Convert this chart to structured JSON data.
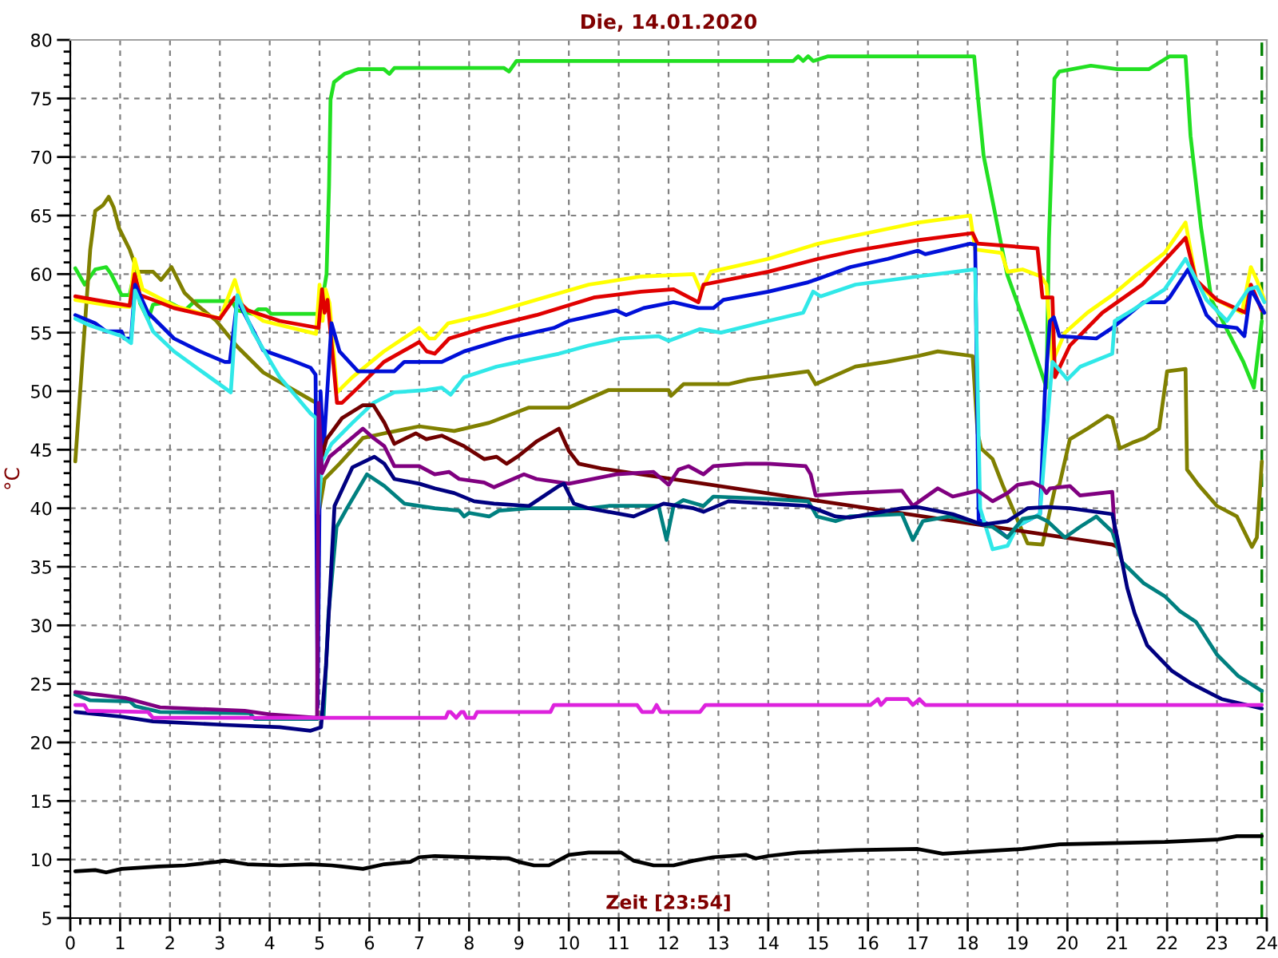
{
  "chart_data": {
    "type": "line",
    "title": "Die, 14.01.2020",
    "xlabel": "Zeit [23:54]",
    "ylabel": "°C",
    "xlim": [
      0,
      24
    ],
    "ylim": [
      5,
      80
    ],
    "xticks": [
      0,
      {
        "value": 0.2,
        "label": null
      },
      {
        "value": 0.4,
        "label": null
      },
      {
        "value": 0.6,
        "label": null
      },
      {
        "value": 0.8,
        "label": null
      },
      1,
      {
        "value": 1.2,
        "label": null
      },
      {
        "value": 1.4,
        "label": null
      },
      {
        "value": 1.6,
        "label": null
      },
      {
        "value": 1.8,
        "label": null
      },
      2,
      {
        "value": 2.2,
        "label": null
      },
      {
        "value": 2.4,
        "label": null
      },
      {
        "value": 2.6,
        "label": null
      },
      {
        "value": 2.8,
        "label": null
      },
      3,
      {
        "value": 3.2,
        "label": null
      },
      {
        "value": 3.4,
        "label": null
      },
      {
        "value": 3.6,
        "label": null
      },
      {
        "value": 3.8,
        "label": null
      },
      4,
      {
        "value": 4.2,
        "label": null
      },
      {
        "value": 4.4,
        "label": null
      },
      {
        "value": 4.6,
        "label": null
      },
      {
        "value": 4.8,
        "label": null
      },
      5,
      {
        "value": 5.2,
        "label": null
      },
      {
        "value": 5.4,
        "label": null
      },
      {
        "value": 5.6,
        "label": null
      },
      {
        "value": 5.8,
        "label": null
      },
      6,
      {
        "value": 6.2,
        "label": null
      },
      {
        "value": 6.4,
        "label": null
      },
      {
        "value": 6.6,
        "label": null
      },
      {
        "value": 6.8,
        "label": null
      },
      7,
      {
        "value": 7.2,
        "label": null
      },
      {
        "value": 7.4,
        "label": null
      },
      {
        "value": 7.6,
        "label": null
      },
      {
        "value": 7.8,
        "label": null
      },
      8,
      {
        "value": 8.2,
        "label": null
      },
      {
        "value": 8.4,
        "label": null
      },
      {
        "value": 8.6,
        "label": null
      },
      {
        "value": 8.8,
        "label": null
      },
      9,
      {
        "value": 9.2,
        "label": null
      },
      {
        "value": 9.4,
        "label": null
      },
      {
        "value": 9.6,
        "label": null
      },
      {
        "value": 9.8,
        "label": null
      },
      10,
      {
        "value": 10.2,
        "label": null
      },
      {
        "value": 10.4,
        "label": null
      },
      {
        "value": 10.6,
        "label": null
      },
      {
        "value": 10.8,
        "label": null
      },
      11,
      {
        "value": 11.2,
        "label": null
      },
      {
        "value": 11.4,
        "label": null
      },
      {
        "value": 11.6,
        "label": null
      },
      {
        "value": 11.8,
        "label": null
      },
      12,
      {
        "value": 12.2,
        "label": null
      },
      {
        "value": 12.4,
        "label": null
      },
      {
        "value": 12.6,
        "label": null
      },
      {
        "value": 12.8,
        "label": null
      },
      13,
      {
        "value": 13.2,
        "label": null
      },
      {
        "value": 13.4,
        "label": null
      },
      {
        "value": 13.6,
        "label": null
      },
      {
        "value": 13.8,
        "label": null
      },
      14,
      {
        "value": 14.2,
        "label": null
      },
      {
        "value": 14.4,
        "label": null
      },
      {
        "value": 14.6,
        "label": null
      },
      {
        "value": 14.8,
        "label": null
      },
      15,
      {
        "value": 15.2,
        "label": null
      },
      {
        "value": 15.4,
        "label": null
      },
      {
        "value": 15.6,
        "label": null
      },
      {
        "value": 15.8,
        "label": null
      },
      16,
      {
        "value": 16.2,
        "label": null
      },
      {
        "value": 16.4,
        "label": null
      },
      {
        "value": 16.6,
        "label": null
      },
      {
        "value": 16.8,
        "label": null
      },
      17,
      {
        "value": 17.2,
        "label": null
      },
      {
        "value": 17.4,
        "label": null
      },
      {
        "value": 17.6,
        "label": null
      },
      {
        "value": 17.8,
        "label": null
      },
      18,
      {
        "value": 18.2,
        "label": null
      },
      {
        "value": 18.4,
        "label": null
      },
      {
        "value": 18.6,
        "label": null
      },
      {
        "value": 18.8,
        "label": null
      },
      19,
      {
        "value": 19.2,
        "label": null
      },
      {
        "value": 19.4,
        "label": null
      },
      {
        "value": 19.6,
        "label": null
      },
      {
        "value": 19.8,
        "label": null
      },
      20,
      {
        "value": 20.2,
        "label": null
      },
      {
        "value": 20.4,
        "label": null
      },
      {
        "value": 20.6,
        "label": null
      },
      {
        "value": 20.8,
        "label": null
      },
      21,
      {
        "value": 21.2,
        "label": null
      },
      {
        "value": 21.4,
        "label": null
      },
      {
        "value": 21.6,
        "label": null
      },
      {
        "value": 21.8,
        "label": null
      },
      22,
      {
        "value": 22.2,
        "label": null
      },
      {
        "value": 22.4,
        "label": null
      },
      {
        "value": 22.6,
        "label": null
      },
      {
        "value": 22.8,
        "label": null
      },
      23,
      {
        "value": 23.2,
        "label": null
      },
      {
        "value": 23.4,
        "label": null
      },
      {
        "value": 23.6,
        "label": null
      },
      {
        "value": 23.8,
        "label": null
      },
      24
    ],
    "yticks": [
      5,
      {
        "value": 6,
        "label": null
      },
      {
        "value": 7,
        "label": null
      },
      {
        "value": 8,
        "label": null
      },
      {
        "value": 9,
        "label": null
      },
      10,
      {
        "value": 11,
        "label": null
      },
      {
        "value": 12,
        "label": null
      },
      {
        "value": 13,
        "label": null
      },
      {
        "value": 14,
        "label": null
      },
      15,
      {
        "value": 16,
        "label": null
      },
      {
        "value": 17,
        "label": null
      },
      {
        "value": 18,
        "label": null
      },
      {
        "value": 19,
        "label": null
      },
      20,
      {
        "value": 21,
        "label": null
      },
      {
        "value": 22,
        "label": null
      },
      {
        "value": 23,
        "label": null
      },
      {
        "value": 24,
        "label": null
      },
      25,
      {
        "value": 26,
        "label": null
      },
      {
        "value": 27,
        "label": null
      },
      {
        "value": 28,
        "label": null
      },
      {
        "value": 29,
        "label": null
      },
      30,
      {
        "value": 31,
        "label": null
      },
      {
        "value": 32,
        "label": null
      },
      {
        "value": 33,
        "label": null
      },
      {
        "value": 34,
        "label": null
      },
      35,
      {
        "value": 36,
        "label": null
      },
      {
        "value": 37,
        "label": null
      },
      {
        "value": 38,
        "label": null
      },
      {
        "value": 39,
        "label": null
      },
      40,
      {
        "value": 41,
        "label": null
      },
      {
        "value": 42,
        "label": null
      },
      {
        "value": 43,
        "label": null
      },
      {
        "value": 44,
        "label": null
      },
      45,
      {
        "value": 46,
        "label": null
      },
      {
        "value": 47,
        "label": null
      },
      {
        "value": 48,
        "label": null
      },
      {
        "value": 49,
        "label": null
      },
      50,
      {
        "value": 51,
        "label": null
      },
      {
        "value": 52,
        "label": null
      },
      {
        "value": 53,
        "label": null
      },
      {
        "value": 54,
        "label": null
      },
      55,
      {
        "value": 56,
        "label": null
      },
      {
        "value": 57,
        "label": null
      },
      {
        "value": 58,
        "label": null
      },
      {
        "value": 59,
        "label": null
      },
      60,
      {
        "value": 61,
        "label": null
      },
      {
        "value": 62,
        "label": null
      },
      {
        "value": 63,
        "label": null
      },
      {
        "value": 64,
        "label": null
      },
      65,
      {
        "value": 66,
        "label": null
      },
      {
        "value": 67,
        "label": null
      },
      {
        "value": 68,
        "label": null
      },
      {
        "value": 69,
        "label": null
      },
      70,
      {
        "value": 71,
        "label": null
      },
      {
        "value": 72,
        "label": null
      },
      {
        "value": 73,
        "label": null
      },
      {
        "value": 74,
        "label": null
      },
      75,
      {
        "value": 76,
        "label": null
      },
      {
        "value": 77,
        "label": null
      },
      {
        "value": 78,
        "label": null
      },
      {
        "value": 79,
        "label": null
      },
      80
    ],
    "grid": true,
    "ref_lines": [
      {
        "axis": "x",
        "value": 23.9,
        "color": "#008000",
        "line_style": "dashed"
      }
    ],
    "series": [
      {
        "color": "#22e022",
        "x": [
          0.1,
          0.29,
          0.5,
          0.72,
          0.82,
          1.03,
          1.19,
          1.29,
          1.4,
          1.56,
          1.66,
          1.98,
          2.3,
          2.5,
          3.24,
          3.35,
          3.66,
          3.77,
          3.93,
          4.03,
          5.01,
          5.14,
          5.19,
          5.22,
          5.29,
          5.5,
          5.77,
          6.29,
          6.4,
          6.5,
          8.7,
          8.8,
          8.95,
          14.5,
          14.6,
          14.7,
          14.8,
          14.9,
          15.2,
          18.13,
          18.21,
          18.32,
          18.79,
          19.21,
          19.58,
          19.63,
          19.74,
          19.84,
          20.47,
          21.0,
          21.63,
          22.05,
          22.37,
          22.47,
          22.68,
          22.89,
          23.1,
          23.53,
          23.74,
          23.9
        ],
        "values": [
          60.5,
          59.1,
          60.4,
          60.6,
          60,
          58.2,
          58.2,
          60.2,
          57.5,
          56.1,
          57.4,
          57.6,
          56.9,
          57.7,
          57.7,
          56.9,
          56.6,
          57,
          57,
          56.6,
          56.6,
          60,
          67.5,
          74.9,
          76.4,
          77.1,
          77.5,
          77.5,
          77.1,
          77.6,
          77.6,
          77.3,
          78.2,
          78.2,
          78.6,
          78.2,
          78.6,
          78.2,
          78.6,
          78.6,
          74.9,
          70.1,
          60,
          55,
          50.3,
          63,
          76.7,
          77.3,
          77.8,
          77.5,
          77.5,
          78.6,
          78.6,
          71.8,
          64,
          57.8,
          56.1,
          52.5,
          50.3,
          56
        ]
      },
      {
        "color": "#808000",
        "x": [
          0.1,
          0.24,
          0.4,
          0.5,
          0.66,
          0.77,
          0.87,
          0.98,
          1.19,
          1.35,
          1.66,
          1.82,
          2.03,
          2.29,
          2.56,
          2.93,
          3.35,
          3.87,
          4.4,
          4.93,
          5.0,
          5.1,
          5.4,
          5.87,
          6.3,
          7.0,
          7.7,
          8.4,
          9.2,
          10.0,
          10.8,
          12.0,
          12.05,
          12.3,
          13.2,
          13.6,
          14.8,
          14.95,
          15.75,
          16.37,
          17.0,
          17.4,
          18.1,
          18.2,
          18.27,
          18.5,
          18.7,
          18.9,
          19.2,
          19.5,
          19.75,
          19.84,
          20.05,
          20.4,
          20.8,
          20.9,
          21.05,
          21.3,
          21.55,
          21.84,
          22.0,
          22.37,
          22.4,
          22.63,
          23.0,
          23.4,
          23.7,
          23.8,
          23.9
        ],
        "values": [
          44,
          52.5,
          62.1,
          65.4,
          65.9,
          66.6,
          65.7,
          63.9,
          62.1,
          60.2,
          60.2,
          59.5,
          60.6,
          58.4,
          57.3,
          56,
          53.8,
          51.6,
          50.3,
          49,
          40,
          42.5,
          43.8,
          46,
          46.4,
          47,
          46.6,
          47.3,
          48.6,
          48.6,
          50.1,
          50.1,
          49.6,
          50.6,
          50.6,
          51,
          51.7,
          50.6,
          52.1,
          52.5,
          53,
          53.4,
          53,
          46.4,
          45.1,
          44.2,
          42,
          40,
          37,
          36.9,
          41.7,
          42,
          45.9,
          46.8,
          47.9,
          47.7,
          45.1,
          45.6,
          46,
          46.8,
          51.7,
          51.9,
          43.3,
          42,
          40.2,
          39.3,
          36.7,
          37.5,
          44
        ]
      },
      {
        "color": "#ffff00",
        "x": [
          0.1,
          0.82,
          1.19,
          1.29,
          1.45,
          2.08,
          3.0,
          3.3,
          3.45,
          3.87,
          4.93,
          5.0,
          5.06,
          5.12,
          5.2,
          5.35,
          5.66,
          6.29,
          7.0,
          7.2,
          7.31,
          7.58,
          8.3,
          9.35,
          10.4,
          11.45,
          12.5,
          12.65,
          12.85,
          14.0,
          15.0,
          15.75,
          17.0,
          18.05,
          18.15,
          18.68,
          18.8,
          19.1,
          19.47,
          19.58,
          19.7,
          19.95,
          20.4,
          20.9,
          21.4,
          21.95,
          22.37,
          22.58,
          22.9,
          23.5,
          23.68,
          23.8,
          23.95
        ],
        "values": [
          57.8,
          57.3,
          57.2,
          61.3,
          58.7,
          57.3,
          56.2,
          59.5,
          57.3,
          56,
          54.9,
          59.1,
          56,
          58.7,
          57.5,
          49.9,
          51.2,
          53.4,
          55.4,
          54.5,
          54.5,
          55.8,
          56.5,
          57.8,
          59.1,
          59.8,
          60,
          58.5,
          60.2,
          61.3,
          62.6,
          63.3,
          64.4,
          65,
          62.1,
          61.8,
          60.2,
          60.4,
          59.8,
          59.1,
          52.5,
          55,
          56.7,
          58.2,
          60,
          61.8,
          64.4,
          59.5,
          58,
          56.7,
          60.6,
          59.5,
          57.8
        ]
      },
      {
        "color": "#e00000",
        "x": [
          0.1,
          0.5,
          1.19,
          1.29,
          1.4,
          1.66,
          2.08,
          3.0,
          3.3,
          3.56,
          4.2,
          4.98,
          5.05,
          5.1,
          5.16,
          5.35,
          5.45,
          5.77,
          6.29,
          7.0,
          7.15,
          7.31,
          7.6,
          8.3,
          9.35,
          10.5,
          11.45,
          12.1,
          12.6,
          12.7,
          14.0,
          15.0,
          15.75,
          17.0,
          18.1,
          18.2,
          19.4,
          19.5,
          19.7,
          19.75,
          20.05,
          20.7,
          21.5,
          22.37,
          22.58,
          23.0,
          23.58,
          23.68,
          23.9
        ],
        "values": [
          58.1,
          57.8,
          57.3,
          60,
          58.2,
          57.8,
          57.1,
          56.2,
          58,
          56.9,
          56,
          55.4,
          58.7,
          56.7,
          57.8,
          49,
          49,
          50.3,
          52.5,
          54.2,
          53.4,
          53.2,
          54.5,
          55.4,
          56.5,
          58,
          58.5,
          58.7,
          57.6,
          59.1,
          60.2,
          61.3,
          62,
          62.9,
          63.5,
          62.6,
          62.2,
          58,
          58,
          51.2,
          53.9,
          56.7,
          59.1,
          63.1,
          59.5,
          57.8,
          56.7,
          59.1,
          56.9
        ]
      },
      {
        "color": "#0010d8",
        "x": [
          0.1,
          0.5,
          0.72,
          1.03,
          1.08,
          1.22,
          1.3,
          1.56,
          2.08,
          2.6,
          3.1,
          3.2,
          3.35,
          3.87,
          4.4,
          4.82,
          4.92,
          4.96,
          5.02,
          5.08,
          5.24,
          5.4,
          5.77,
          6.5,
          6.7,
          7.45,
          7.9,
          8.75,
          9.7,
          10.0,
          10.95,
          11.15,
          11.5,
          12.1,
          12.6,
          12.9,
          13.1,
          14.0,
          14.8,
          15.0,
          15.65,
          16.4,
          17.0,
          17.15,
          18.05,
          18.15,
          18.22,
          18.5,
          18.8,
          19.0,
          19.45,
          19.55,
          19.65,
          19.73,
          19.84,
          20.58,
          20.9,
          21.53,
          21.95,
          22.05,
          22.42,
          22.79,
          23.0,
          23.4,
          23.55,
          23.68,
          23.95
        ],
        "values": [
          56.5,
          55.8,
          55.1,
          55.1,
          54.5,
          54.5,
          59.1,
          56.7,
          54.5,
          53.4,
          52.5,
          52.5,
          57.8,
          53.5,
          52.7,
          52,
          51.4,
          23,
          50,
          45,
          55.8,
          53.4,
          51.7,
          51.7,
          52.5,
          52.5,
          53.4,
          54.5,
          55.4,
          56,
          56.9,
          56.5,
          57.1,
          57.6,
          57.1,
          57.1,
          57.8,
          58.5,
          59.3,
          59.6,
          60.6,
          61.3,
          62,
          61.7,
          62.6,
          62.5,
          39,
          38.5,
          37.5,
          38.5,
          39.5,
          50,
          56,
          56.3,
          54.7,
          54.5,
          55.4,
          57.6,
          57.6,
          58,
          60.4,
          56.5,
          55.6,
          55.4,
          54.7,
          58.7,
          56.7
        ]
      },
      {
        "color": "#30e8e8",
        "x": [
          0.1,
          0.4,
          1.03,
          1.22,
          1.3,
          1.66,
          2.08,
          2.6,
          3.22,
          3.35,
          3.66,
          4.2,
          4.82,
          4.93,
          4.97,
          5.05,
          5.24,
          5.66,
          6.08,
          6.5,
          7.14,
          7.45,
          7.63,
          7.9,
          8.55,
          9.0,
          9.8,
          10.4,
          11.05,
          11.8,
          12.0,
          12.63,
          13.05,
          14.0,
          14.7,
          14.9,
          15.05,
          15.75,
          17.0,
          18.15,
          18.25,
          18.5,
          18.8,
          19.0,
          19.45,
          19.55,
          19.7,
          20.0,
          20.26,
          20.9,
          20.95,
          21.3,
          21.95,
          22.37,
          22.79,
          23.2,
          23.63,
          23.8,
          23.95
        ],
        "values": [
          56.2,
          55.6,
          54.7,
          54.1,
          58.6,
          55.1,
          53.4,
          51.8,
          49.9,
          58.2,
          55.1,
          51.2,
          48.1,
          47.7,
          39.5,
          44,
          45.5,
          47.3,
          49,
          49.9,
          50.1,
          50.3,
          49.7,
          51.2,
          52.1,
          52.5,
          53.2,
          53.9,
          54.5,
          54.7,
          54.3,
          55.3,
          55,
          56,
          56.7,
          58.5,
          58.1,
          59.1,
          59.8,
          60.4,
          40,
          36.5,
          36.8,
          38.5,
          39.5,
          45,
          52.5,
          51,
          52.1,
          53.2,
          56,
          56.9,
          58.7,
          61.3,
          57.8,
          56,
          58.7,
          58.9,
          57.6
        ]
      },
      {
        "color": "#700000",
        "x": [
          5.05,
          5.14,
          5.45,
          5.87,
          6.08,
          6.3,
          6.5,
          6.93,
          7.14,
          7.45,
          7.7,
          7.9,
          8.3,
          8.55,
          8.75,
          9.0,
          9.35,
          9.8,
          10.0,
          10.2,
          10.65,
          20.9,
          21.0
        ],
        "values": [
          44.5,
          45.9,
          47.7,
          48.8,
          48.8,
          47.3,
          45.5,
          46.4,
          45.9,
          46.2,
          45.7,
          45.3,
          44.2,
          44.4,
          43.8,
          44.5,
          45.7,
          46.8,
          44.9,
          43.8,
          43.4,
          36.9,
          36.7
        ]
      },
      {
        "color": "#008080",
        "x": [
          0.1,
          0.4,
          1.2,
          1.3,
          1.8,
          3.6,
          3.7,
          4.95,
          5.08,
          5.18,
          5.34,
          5.55,
          5.95,
          6.3,
          6.7,
          7.31,
          7.8,
          7.9,
          8.0,
          8.4,
          8.6,
          9.2,
          10.4,
          10.8,
          11.8,
          11.96,
          12.1,
          12.3,
          12.7,
          12.9,
          14.0,
          14.8,
          14.98,
          15.35,
          15.63,
          16.68,
          16.9,
          17.1,
          17.63,
          18.05,
          18.5,
          18.8,
          19.1,
          19.4,
          19.6,
          19.95,
          20.25,
          20.58,
          20.9,
          21.1,
          21.53,
          21.95,
          22.26,
          22.58,
          23.0,
          23.42,
          23.9
        ],
        "values": [
          24.1,
          23.6,
          23.5,
          23.1,
          22.6,
          22.5,
          22.0,
          22.0,
          22.2,
          31,
          38.4,
          40,
          42.9,
          41.9,
          40.4,
          40,
          39.8,
          39.3,
          39.6,
          39.3,
          39.8,
          40,
          40,
          40.2,
          40.2,
          37.3,
          40.2,
          40.7,
          40.2,
          41,
          40.8,
          40.6,
          39.3,
          38.9,
          39.3,
          39.5,
          37.3,
          38.9,
          39.3,
          38.9,
          38.4,
          37.5,
          39.1,
          39.3,
          38.9,
          37.5,
          38.4,
          39.3,
          38,
          35.4,
          33.6,
          32.5,
          31.2,
          30.3,
          27.5,
          25.7,
          24.4
        ]
      },
      {
        "color": "#800080",
        "x": [
          0.1,
          1.1,
          1.8,
          3.5,
          4.0,
          4.95,
          4.98,
          5.05,
          5.2,
          5.45,
          5.87,
          6.08,
          6.3,
          6.5,
          7.0,
          7.31,
          7.6,
          7.8,
          8.3,
          8.5,
          9.1,
          9.35,
          10.0,
          10.95,
          11.7,
          12.0,
          12.2,
          12.4,
          12.7,
          12.9,
          13.55,
          14.0,
          14.75,
          14.85,
          14.95,
          15.63,
          16.68,
          16.9,
          17.4,
          17.7,
          18.2,
          18.5,
          18.8,
          19.0,
          19.3,
          19.5,
          19.58,
          19.65,
          20.05,
          20.25,
          20.9,
          20.95
        ],
        "values": [
          24.3,
          23.8,
          23.0,
          22.7,
          22.4,
          22.1,
          49,
          43,
          44.4,
          45.3,
          46.8,
          46,
          45.3,
          43.6,
          43.6,
          42.9,
          43.1,
          42.5,
          42.2,
          41.8,
          42.9,
          42.5,
          42.1,
          42.9,
          43.1,
          42,
          43.3,
          43.6,
          42.9,
          43.6,
          43.8,
          43.8,
          43.6,
          42.9,
          41.1,
          41.3,
          41.5,
          40.2,
          41.7,
          41,
          41.5,
          40.6,
          41.3,
          42,
          42.2,
          41.8,
          41.3,
          41.7,
          41.9,
          41.1,
          41.4,
          38
        ]
      },
      {
        "color": "#000080",
        "x": [
          0.1,
          1.03,
          1.66,
          3.1,
          4.2,
          4.82,
          5.03,
          5.13,
          5.24,
          5.3,
          5.66,
          6.1,
          6.3,
          6.5,
          7.0,
          7.31,
          7.7,
          8.1,
          8.5,
          9.2,
          9.8,
          9.9,
          10.1,
          10.4,
          11.3,
          11.9,
          12.5,
          12.7,
          13.2,
          14.0,
          14.8,
          15.35,
          15.63,
          16.68,
          17.0,
          17.7,
          18.3,
          18.8,
          19.2,
          19.6,
          20.05,
          20.9,
          21.0,
          21.2,
          21.35,
          21.6,
          22.1,
          22.5,
          23.1,
          23.9
        ],
        "values": [
          22.6,
          22.2,
          21.8,
          21.5,
          21.3,
          21,
          21.3,
          26.6,
          35.4,
          40.2,
          43.5,
          44.4,
          43.8,
          42.5,
          42.1,
          41.7,
          41.3,
          40.6,
          40.4,
          40.2,
          41.9,
          42.1,
          40.4,
          40,
          39.3,
          40.4,
          40,
          39.7,
          40.6,
          40.4,
          40.2,
          39.3,
          39.2,
          40,
          40.1,
          39.5,
          38.6,
          38.9,
          40,
          40.1,
          40,
          39.5,
          37.5,
          33.2,
          31,
          28.3,
          26.1,
          25,
          23.7,
          22.9
        ]
      },
      {
        "color": "#dd22dd",
        "x": [
          0.1,
          0.28,
          0.35,
          1.56,
          1.66,
          7.53,
          7.58,
          7.63,
          7.74,
          7.84,
          7.89,
          7.95,
          8.1,
          8.16,
          9.63,
          9.7,
          11.37,
          11.47,
          11.68,
          11.76,
          11.84,
          12.63,
          12.74,
          16.05,
          16.2,
          16.26,
          16.37,
          16.8,
          16.9,
          17.03,
          17.15,
          23.9
        ],
        "values": [
          23.2,
          23.2,
          22.7,
          22.6,
          22.1,
          22.1,
          22.6,
          22.6,
          22.1,
          22.6,
          22.6,
          22.1,
          22.1,
          22.6,
          22.6,
          23.2,
          23.2,
          22.6,
          22.6,
          23.2,
          22.6,
          22.6,
          23.2,
          23.2,
          23.7,
          23.2,
          23.7,
          23.7,
          23.2,
          23.7,
          23.2,
          23.2
        ]
      },
      {
        "color": "#000000",
        "x": [
          0.1,
          0.5,
          0.72,
          1.03,
          1.77,
          2.3,
          2.93,
          3.1,
          3.55,
          4.2,
          4.82,
          5.24,
          5.45,
          5.87,
          6.3,
          6.82,
          7.0,
          7.31,
          8.8,
          9.0,
          9.3,
          9.6,
          10.0,
          10.4,
          11.05,
          11.3,
          11.7,
          12.1,
          12.5,
          12.9,
          13.55,
          13.75,
          14.0,
          14.6,
          15.75,
          17.0,
          17.5,
          18.3,
          19.1,
          19.84,
          20.9,
          21.95,
          23.0,
          23.4,
          23.9
        ],
        "values": [
          9.0,
          9.1,
          8.9,
          9.2,
          9.4,
          9.5,
          9.8,
          9.9,
          9.6,
          9.5,
          9.6,
          9.5,
          9.4,
          9.2,
          9.6,
          9.8,
          10.2,
          10.3,
          10.1,
          9.8,
          9.5,
          9.5,
          10.4,
          10.6,
          10.6,
          9.9,
          9.5,
          9.5,
          9.9,
          10.2,
          10.4,
          10.1,
          10.3,
          10.6,
          10.8,
          10.9,
          10.5,
          10.7,
          10.9,
          11.3,
          11.4,
          11.5,
          11.7,
          12.0,
          12.0
        ]
      }
    ]
  }
}
